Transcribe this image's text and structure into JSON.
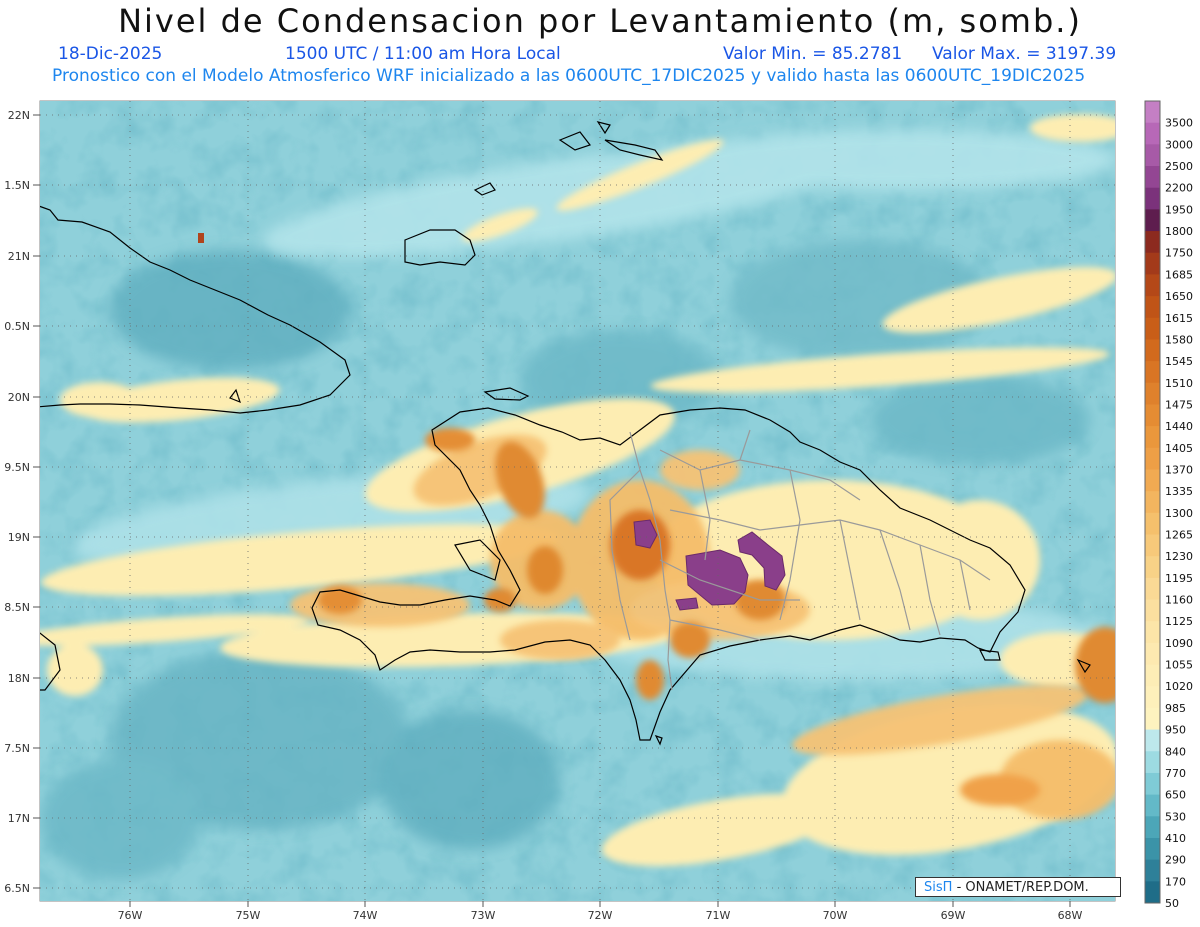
{
  "header": {
    "title": "Nivel de Condensacion por Levantamiento (m, somb.)",
    "date": "18-Dic-2025",
    "time": "1500 UTC / 11:00 am Hora Local",
    "min_label": "Valor Min. = 85.2781",
    "max_label": "Valor Max. = 3197.39",
    "forecast_line": "Pronostico con el Modelo Atmosferico WRF inicializado a las 0600UTC_17DIC2025 y valido hasta las  0600UTC_19DIC2025"
  },
  "axes": {
    "lat_labels": [
      "22N",
      "1.5N",
      "21N",
      "0.5N",
      "20N",
      "9.5N",
      "19N",
      "8.5N",
      "18N",
      "7.5N",
      "17N",
      "6.5N"
    ],
    "lon_labels": [
      "76W",
      "75W",
      "74W",
      "73W",
      "72W",
      "71W",
      "70W",
      "69W",
      "68W"
    ]
  },
  "colorbar": {
    "labels": [
      "3500",
      "3000",
      "2500",
      "2200",
      "1950",
      "1800",
      "1750",
      "1685",
      "1650",
      "1615",
      "1580",
      "1545",
      "1510",
      "1475",
      "1440",
      "1405",
      "1370",
      "1335",
      "1300",
      "1265",
      "1230",
      "1195",
      "1160",
      "1125",
      "1090",
      "1055",
      "1020",
      "985",
      "950",
      "840",
      "770",
      "650",
      "530",
      "410",
      "290",
      "170",
      "50"
    ],
    "colors": [
      "#c47fc4",
      "#b768b7",
      "#a75aa7",
      "#934693",
      "#7b327b",
      "#5e1d4e",
      "#8c2a1f",
      "#a33a1a",
      "#b44818",
      "#c05417",
      "#c95e18",
      "#d26a1d",
      "#d97524",
      "#df812c",
      "#e58c33",
      "#ea973c",
      "#ee9f46",
      "#f1aa52",
      "#f3b55f",
      "#f5c06c",
      "#f7c97a",
      "#f8d287",
      "#fad995",
      "#fbdf9f",
      "#fce5a8",
      "#fde9b0",
      "#fdedb6",
      "#fef0bb",
      "#fef3bf",
      "#bde8ec",
      "#9ddbe2",
      "#7fcbd6",
      "#63b9c8",
      "#4ca6b8",
      "#3b93a8",
      "#2e8099",
      "#1f6d88"
    ]
  },
  "credit": {
    "brand": "SisΠ",
    "text": "- ONAMET/REP.DOM."
  }
}
